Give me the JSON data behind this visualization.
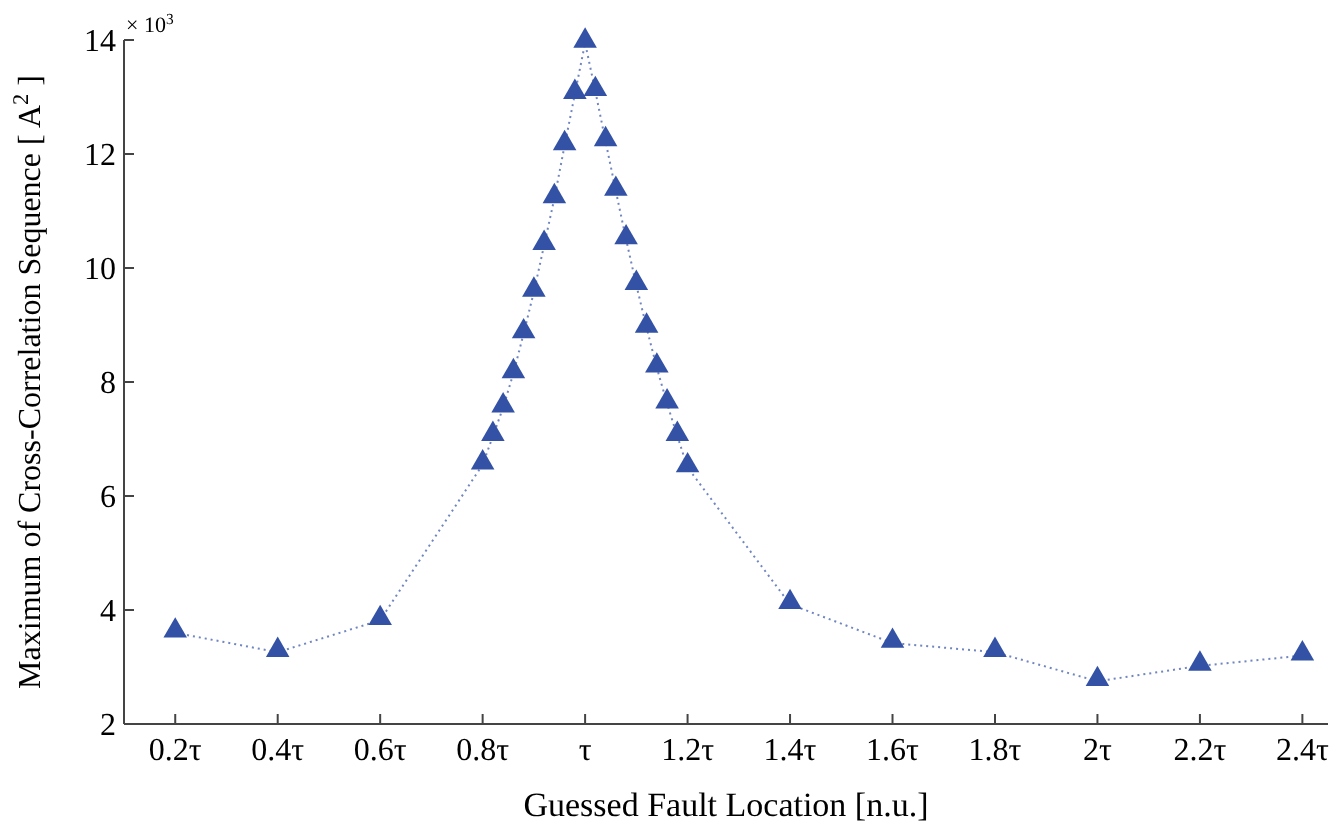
{
  "chart_data": {
    "type": "line",
    "xlabel": "Guessed Fault Location [n.u.]",
    "ylabel": "Maximum of Cross-Correlation Sequence  [ A$^{2}$ ]",
    "annotations": [
      "× 10$^{3}$"
    ],
    "x": [
      0.2,
      0.4,
      0.6,
      0.8,
      0.82,
      0.84,
      0.86,
      0.88,
      0.9,
      0.92,
      0.94,
      0.96,
      0.98,
      1.0,
      1.02,
      1.04,
      1.06,
      1.08,
      1.1,
      1.12,
      1.14,
      1.16,
      1.18,
      1.2,
      1.4,
      1.6,
      1.8,
      2.0,
      2.2,
      2.4
    ],
    "series": [
      {
        "color": "#3352a6",
        "values": [
          3.6,
          3.26,
          3.82,
          6.55,
          7.05,
          7.55,
          8.15,
          8.85,
          9.58,
          10.4,
          11.22,
          12.15,
          13.05,
          13.95,
          13.1,
          12.22,
          11.35,
          10.5,
          9.7,
          8.95,
          8.25,
          7.62,
          7.05,
          6.5,
          4.1,
          3.42,
          3.26,
          2.75,
          3.02,
          3.2
        ]
      }
    ],
    "xlim": [
      0.1,
      2.45
    ],
    "ylim": [
      2,
      14
    ],
    "xticks": [
      {
        "value": 0.2,
        "label": "0.2τ"
      },
      {
        "value": 0.4,
        "label": "0.4τ"
      },
      {
        "value": 0.6,
        "label": "0.6τ"
      },
      {
        "value": 0.8,
        "label": "0.8τ"
      },
      {
        "value": 1.0,
        "label": "τ"
      },
      {
        "value": 1.2,
        "label": "1.2τ"
      },
      {
        "value": 1.4,
        "label": "1.4τ"
      },
      {
        "value": 1.6,
        "label": "1.6τ"
      },
      {
        "value": 1.8,
        "label": "1.8τ"
      },
      {
        "value": 2.0,
        "label": "2τ"
      },
      {
        "value": 2.2,
        "label": "2.2τ"
      },
      {
        "value": 2.4,
        "label": "2.4τ"
      }
    ],
    "yticks": [
      2,
      4,
      6,
      8,
      10,
      12,
      14
    ],
    "marker": "triangle",
    "line_style": "dotted"
  }
}
